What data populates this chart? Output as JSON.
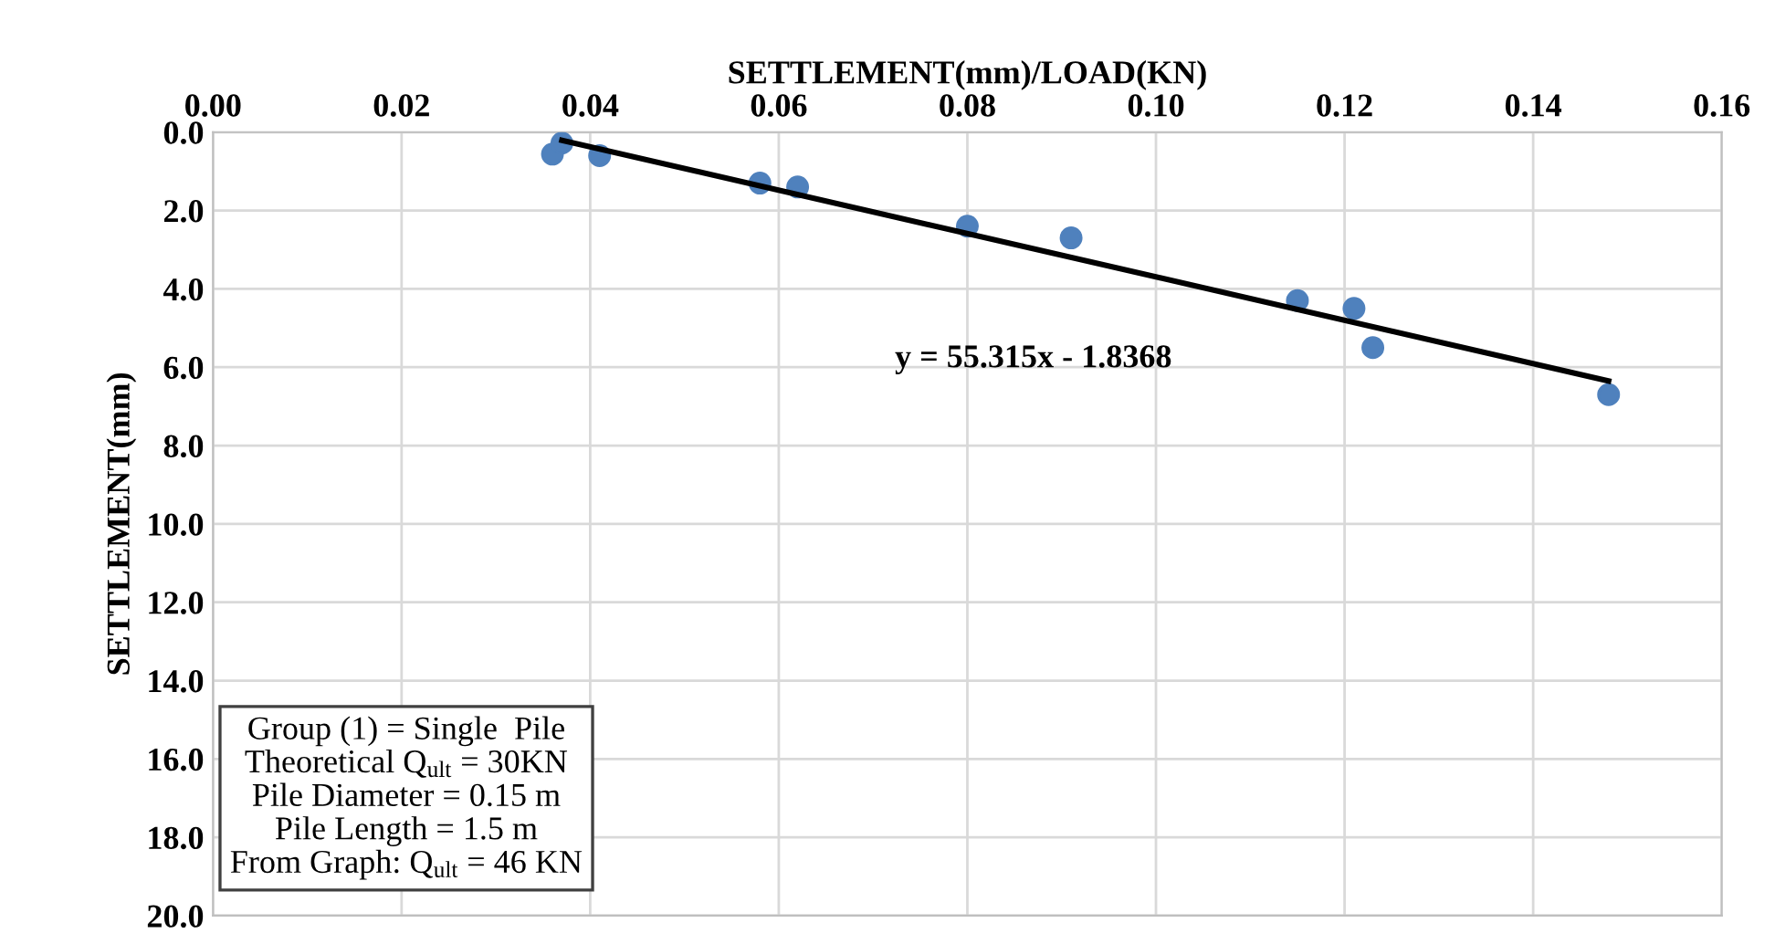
{
  "chart_data": {
    "type": "scatter",
    "xlabel": "SETTLEMENT(mm)/LOAD(KN)",
    "ylabel": "SETTLEMENT(mm)",
    "x": [
      0.036,
      0.037,
      0.041,
      0.058,
      0.062,
      0.08,
      0.091,
      0.115,
      0.121,
      0.123,
      0.148
    ],
    "series": [
      {
        "color": "#4f81bd",
        "values": [
          0.56,
          0.28,
          0.6,
          1.3,
          1.4,
          2.4,
          2.7,
          4.3,
          4.5,
          5.5,
          6.7
        ]
      },
      {
        "type": "line",
        "color": "#000000",
        "x": [
          0.037,
          0.148
        ],
        "values": [
          0.21,
          6.35
        ],
        "marker": "none"
      }
    ],
    "xlim": [
      0,
      0.16
    ],
    "xticks": [
      {
        "value": 0,
        "label": "0.00"
      },
      {
        "value": 0.02,
        "label": "0.02"
      },
      {
        "value": 0.04,
        "label": "0.04"
      },
      {
        "value": 0.06,
        "label": "0.06"
      },
      {
        "value": 0.08,
        "label": "0.08"
      },
      {
        "value": 0.1,
        "label": "0.10"
      },
      {
        "value": 0.12,
        "label": "0.12"
      },
      {
        "value": 0.14,
        "label": "0.14"
      },
      {
        "value": 0.16,
        "label": "0.16"
      }
    ],
    "ylim": [
      20,
      0
    ],
    "yticks": [
      {
        "value": 0,
        "label": "0.0"
      },
      {
        "value": 2,
        "label": "2.0"
      },
      {
        "value": 4,
        "label": "4.0"
      },
      {
        "value": 6,
        "label": "6.0"
      },
      {
        "value": 8,
        "label": "8.0"
      },
      {
        "value": 10,
        "label": "10.0"
      },
      {
        "value": 12,
        "label": "12.0"
      },
      {
        "value": 14,
        "label": "14.0"
      },
      {
        "value": 16,
        "label": "16.0"
      },
      {
        "value": 18,
        "label": "18.0"
      },
      {
        "value": 20,
        "label": "20.0"
      }
    ],
    "grid": true,
    "marker": "circle",
    "legend": false,
    "annotations": [
      "y = 55.315x - 1.8368",
      "Group (1) = Single  Pile\nTheoretical Q$_{ult}$ = 30KN\nPile Diameter = 0.15 m\nPile Length = 1.5 m\nFrom Graph: Q$_{ult}$ = 46 KN"
    ]
  }
}
